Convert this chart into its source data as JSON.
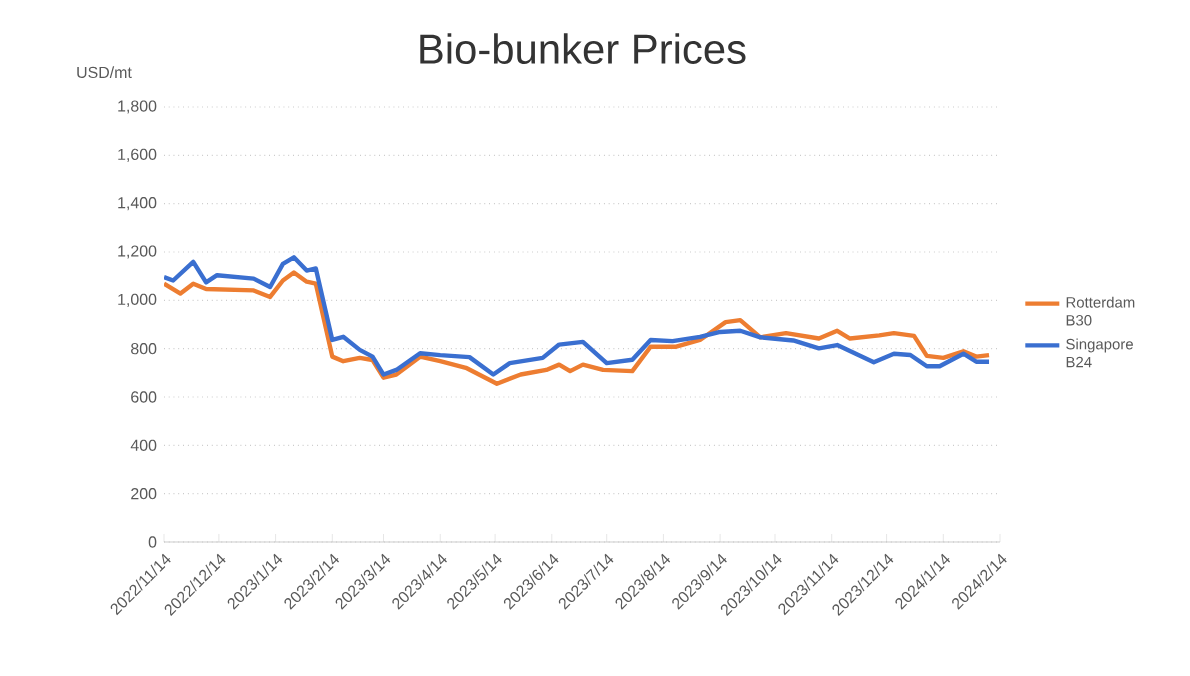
{
  "chart_data": {
    "type": "line",
    "title": "Bio-bunker Prices",
    "ylabel": "USD/mt",
    "xlim": [
      "2022-11-14",
      "2024-02-14"
    ],
    "xticks": [
      {
        "value": "2022-11-14",
        "label": "2022/11/14"
      },
      {
        "value": "2022-12-14",
        "label": "2022/12/14"
      },
      {
        "value": "2023-01-14",
        "label": "2023/1/14"
      },
      {
        "value": "2023-02-14",
        "label": "2023/2/14"
      },
      {
        "value": "2023-03-14",
        "label": "2023/3/14"
      },
      {
        "value": "2023-04-14",
        "label": "2023/4/14"
      },
      {
        "value": "2023-05-14",
        "label": "2023/5/14"
      },
      {
        "value": "2023-06-14",
        "label": "2023/6/14"
      },
      {
        "value": "2023-07-14",
        "label": "2023/7/14"
      },
      {
        "value": "2023-08-14",
        "label": "2023/8/14"
      },
      {
        "value": "2023-09-14",
        "label": "2023/9/14"
      },
      {
        "value": "2023-10-14",
        "label": "2023/10/14"
      },
      {
        "value": "2023-11-14",
        "label": "2023/11/14"
      },
      {
        "value": "2023-12-14",
        "label": "2023/12/14"
      },
      {
        "value": "2024-01-14",
        "label": "2024/1/14"
      },
      {
        "value": "2024-02-14",
        "label": "2024/2/14"
      }
    ],
    "ylim": [
      0,
      1800
    ],
    "yticks": [
      0,
      200,
      400,
      600,
      800,
      {
        "value": 1000,
        "label": "1,000"
      },
      {
        "value": 1200,
        "label": "1,200"
      },
      {
        "value": 1400,
        "label": "1,400"
      },
      {
        "value": 1600,
        "label": "1,600"
      },
      {
        "value": 1800,
        "label": "1,800"
      }
    ],
    "grid": "y",
    "legend": "right",
    "marker": "none",
    "line_style": "solid",
    "series": [
      {
        "name": "Rotterdam B30",
        "color": "#ed7d31",
        "x": [
          "2022-11-14",
          "2022-11-23",
          "2022-11-30",
          "2022-12-07",
          "2023-01-02",
          "2023-01-11",
          "2023-01-18",
          "2023-01-24",
          "2023-01-31",
          "2023-02-05",
          "2023-02-14",
          "2023-02-20",
          "2023-03-01",
          "2023-03-08",
          "2023-03-14",
          "2023-03-21",
          "2023-04-03",
          "2023-04-14",
          "2023-04-28",
          "2023-05-15",
          "2023-05-28",
          "2023-06-11",
          "2023-06-18",
          "2023-06-24",
          "2023-07-01",
          "2023-07-12",
          "2023-07-28",
          "2023-08-07",
          "2023-08-21",
          "2023-09-03",
          "2023-09-17",
          "2023-09-25",
          "2023-10-06",
          "2023-10-20",
          "2023-11-07",
          "2023-11-17",
          "2023-11-24",
          "2023-12-10",
          "2023-12-18",
          "2023-12-29",
          "2024-01-05",
          "2024-01-14",
          "2024-01-25",
          "2024-02-01",
          "2024-02-08"
        ],
        "values": [
          1069,
          1028,
          1069,
          1047,
          1041,
          1014,
          1082,
          1115,
          1077,
          1069,
          767,
          748,
          762,
          753,
          680,
          693,
          767,
          748,
          721,
          655,
          693,
          712,
          734,
          707,
          734,
          712,
          707,
          808,
          808,
          836,
          910,
          918,
          847,
          864,
          842,
          874,
          842,
          855,
          864,
          853,
          770,
          762,
          789,
          767,
          773
        ]
      },
      {
        "name": "Singapore B24",
        "color": "#3a6fd0",
        "x": [
          "2022-11-14",
          "2022-11-19",
          "2022-11-30",
          "2022-12-07",
          "2022-12-13",
          "2023-01-02",
          "2023-01-11",
          "2023-01-18",
          "2023-01-24",
          "2023-01-31",
          "2023-02-05",
          "2023-02-14",
          "2023-02-20",
          "2023-03-01",
          "2023-03-08",
          "2023-03-14",
          "2023-03-21",
          "2023-04-03",
          "2023-04-14",
          "2023-04-30",
          "2023-05-13",
          "2023-05-22",
          "2023-06-09",
          "2023-06-18",
          "2023-07-01",
          "2023-07-14",
          "2023-07-28",
          "2023-08-07",
          "2023-08-19",
          "2023-09-03",
          "2023-09-14",
          "2023-09-25",
          "2023-10-06",
          "2023-10-24",
          "2023-11-07",
          "2023-11-17",
          "2023-12-07",
          "2023-12-18",
          "2023-12-27",
          "2024-01-05",
          "2024-01-12",
          "2024-01-25",
          "2024-02-01",
          "2024-02-08"
        ],
        "values": [
          1096,
          1082,
          1159,
          1074,
          1104,
          1090,
          1055,
          1151,
          1178,
          1123,
          1132,
          836,
          849,
          795,
          767,
          693,
          712,
          781,
          773,
          765,
          693,
          740,
          762,
          817,
          828,
          740,
          754,
          836,
          831,
          849,
          869,
          874,
          847,
          834,
          801,
          815,
          744,
          779,
          774,
          727,
          727,
          779,
          746,
          746
        ]
      }
    ]
  }
}
